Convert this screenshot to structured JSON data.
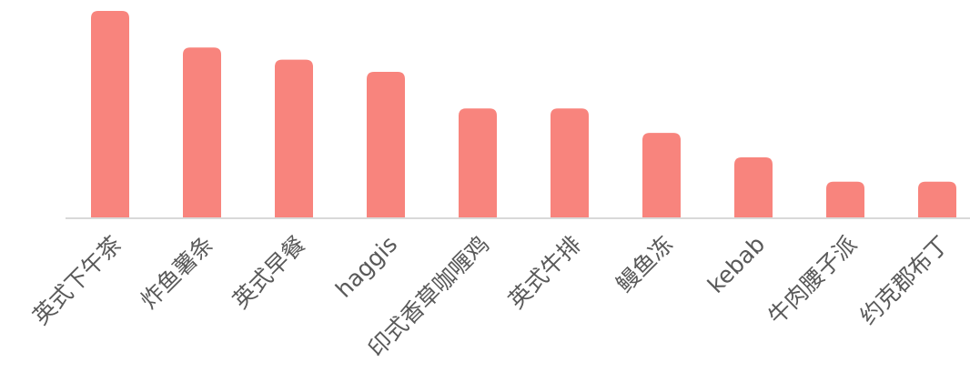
{
  "chart_data": {
    "type": "bar",
    "categories": [
      "英式下午茶",
      "炸鱼薯条",
      "英式早餐",
      "haggis",
      "印式香草咖喱鸡",
      "英式牛排",
      "鳗鱼冻",
      "kebab",
      "牛肉腰子派",
      "约克郡布丁"
    ],
    "values": [
      85,
      70,
      65,
      60,
      45,
      45,
      35,
      25,
      15,
      15
    ],
    "title": "",
    "xlabel": "",
    "ylabel": "",
    "ylim": [
      0,
      85
    ],
    "grid": false,
    "legend": "none",
    "colors": {
      "bar": "#f8847d",
      "axis": "#d9d9d9",
      "label": "#595959"
    }
  }
}
